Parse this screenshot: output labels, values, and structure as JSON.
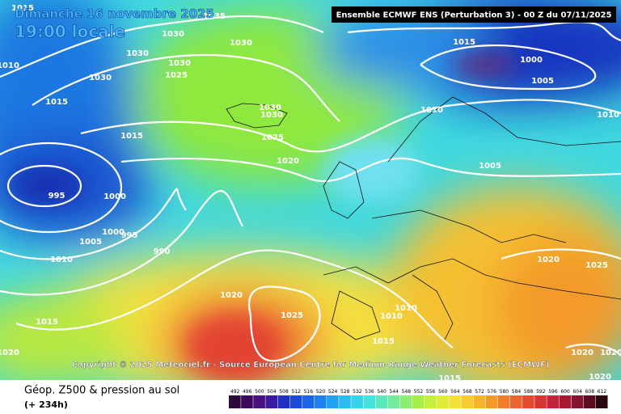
{
  "header": {
    "date": "Dimanche 16 novembre 2025",
    "local_time": "19:00 locale",
    "run": "Ensemble ECMWF ENS  (Perturbation 3)  -  00 Z du 07/11/2025"
  },
  "isobar_labels": [
    "1015",
    "1035",
    "1030",
    "1030",
    "1030",
    "1030",
    "1030",
    "1025",
    "1010",
    "1015",
    "1015",
    "1030",
    "1030",
    "1025",
    "1020",
    "1010",
    "1015",
    "1000",
    "1005",
    "1010",
    "1005",
    "995",
    "1000",
    "1000",
    "995",
    "1005",
    "990",
    "1010",
    "1020",
    "1025",
    "1015",
    "1020",
    "1010",
    "1010",
    "1015",
    "1020",
    "1025",
    "1020",
    "1020",
    "1020",
    "1015"
  ],
  "copyright": "Copyright © 2025 Meteociel.fr - Source European Centre for Medium-Range Weather Forecasts (ECMWF)",
  "legend": {
    "title": "Géop. Z500 & pression au sol",
    "lead": "(+ 234h)",
    "scale": [
      492,
      496,
      500,
      504,
      508,
      512,
      516,
      520,
      524,
      528,
      532,
      536,
      540,
      544,
      548,
      552,
      556,
      560,
      564,
      568,
      572,
      576,
      580,
      584,
      588,
      592,
      596,
      600,
      604,
      608,
      612
    ]
  }
}
